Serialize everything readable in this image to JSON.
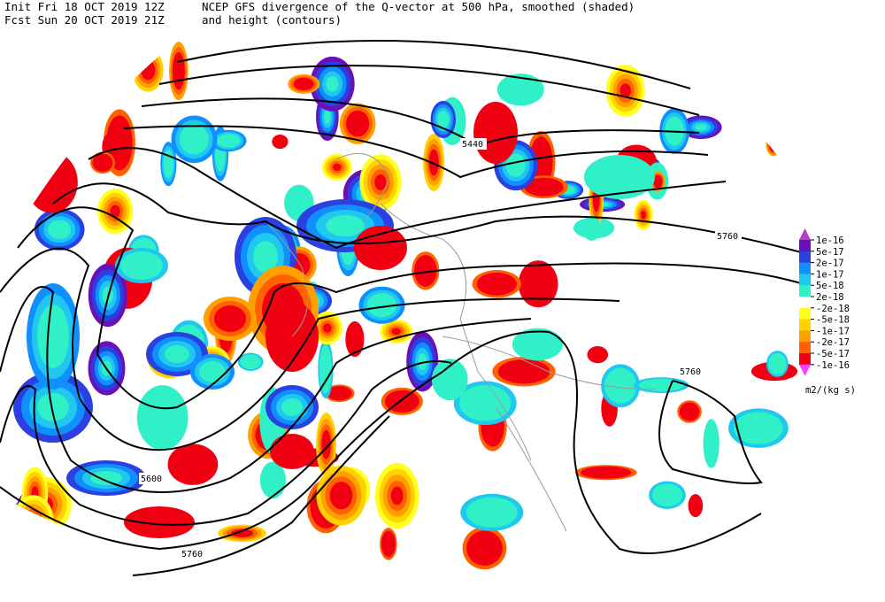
{
  "header": {
    "init": "Init  Fri 18 OCT 2019 12Z",
    "fcst": "Fcst Sun 20 OCT 2019 21Z",
    "title_line1": "NCEP GFS divergence of the Q-vector at 500 hPa, smoothed (shaded)",
    "title_line2": "and height (contours)"
  },
  "contour_labels": [
    "5440",
    "5760",
    "5760",
    "5600",
    "5760"
  ],
  "colorbar": {
    "labels": [
      "1e-16",
      "5e-17",
      "2e-17",
      "1e-17",
      "5e-18",
      "2e-18",
      "-2e-18",
      "-5e-18",
      "-1e-17",
      "-2e-17",
      "-5e-17",
      "-1e-16"
    ],
    "colors": [
      "#b040c8",
      "#6a10b8",
      "#2a40e0",
      "#1090ff",
      "#20c8f0",
      "#30f0c8",
      "#ffffff",
      "#ffff20",
      "#ffd200",
      "#ffa000",
      "#ff6000",
      "#f00010",
      "#ff40ff"
    ],
    "units": "m2/(kg s)"
  }
}
